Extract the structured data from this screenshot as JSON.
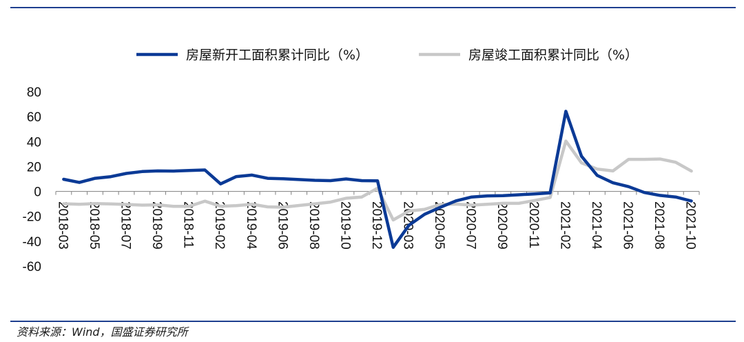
{
  "chart_data": {
    "type": "line",
    "title": "",
    "xlabel": "",
    "ylabel": "",
    "ylim": [
      -60,
      80
    ],
    "yticks": [
      "80",
      "60",
      "40",
      "20",
      "0",
      "-20",
      "-40",
      "-60"
    ],
    "x": [
      "2018-03",
      "2018-04",
      "2018-05",
      "2018-06",
      "2018-07",
      "2018-08",
      "2018-09",
      "2018-10",
      "2018-11",
      "2018-12",
      "2019-02",
      "2019-03",
      "2019-04",
      "2019-05",
      "2019-06",
      "2019-07",
      "2019-08",
      "2019-09",
      "2019-10",
      "2019-11",
      "2019-12",
      "2020-02",
      "2020-03",
      "2020-04",
      "2020-05",
      "2020-06",
      "2020-07",
      "2020-08",
      "2020-09",
      "2020-10",
      "2020-11",
      "2020-12",
      "2021-02",
      "2021-03",
      "2021-04",
      "2021-05",
      "2021-06",
      "2021-07",
      "2021-08",
      "2021-09",
      "2021-10"
    ],
    "xtick_labels": [
      "2018-03",
      "2018-05",
      "2018-07",
      "2018-09",
      "2018-11",
      "2019-02",
      "2019-04",
      "2019-06",
      "2019-08",
      "2019-10",
      "2019-12",
      "2020-03",
      "2020-05",
      "2020-07",
      "2020-09",
      "2020-11",
      "2021-02",
      "2021-04",
      "2021-06",
      "2021-08",
      "2021-10"
    ],
    "series": [
      {
        "name": "房屋新开工面积累计同比（%）",
        "color": "#0b3a96",
        "values": [
          9.7,
          7.2,
          10.5,
          11.8,
          14.4,
          15.9,
          16.4,
          16.3,
          16.8,
          17.2,
          6.0,
          11.9,
          13.1,
          10.5,
          10.1,
          9.5,
          8.9,
          8.6,
          10.0,
          8.6,
          8.5,
          -44.9,
          -27.2,
          -18.4,
          -12.8,
          -7.6,
          -4.5,
          -3.6,
          -3.4,
          -2.7,
          -2.0,
          -1.2,
          64.3,
          28.2,
          12.8,
          6.9,
          3.8,
          -0.9,
          -3.2,
          -4.5,
          -7.7
        ]
      },
      {
        "name": "房屋竣工面积累计同比（%）",
        "color": "#c8c8c8",
        "values": [
          -9.9,
          -10.3,
          -9.8,
          -10.1,
          -10.5,
          -11.0,
          -10.8,
          -12.0,
          -12.0,
          -7.8,
          -11.9,
          -11.4,
          -10.3,
          -12.4,
          -12.7,
          -11.3,
          -10.0,
          -8.6,
          -5.5,
          -4.5,
          2.6,
          -22.9,
          -15.8,
          -14.4,
          -10.5,
          -10.2,
          -11.0,
          -10.3,
          -9.6,
          -9.6,
          -7.3,
          -4.9,
          40.4,
          22.9,
          17.9,
          16.4,
          25.7,
          25.7,
          26.0,
          23.4,
          16.3
        ]
      }
    ],
    "legend_position": "top",
    "grid": false
  },
  "source": "资料来源：Wind，国盛证券研究所"
}
